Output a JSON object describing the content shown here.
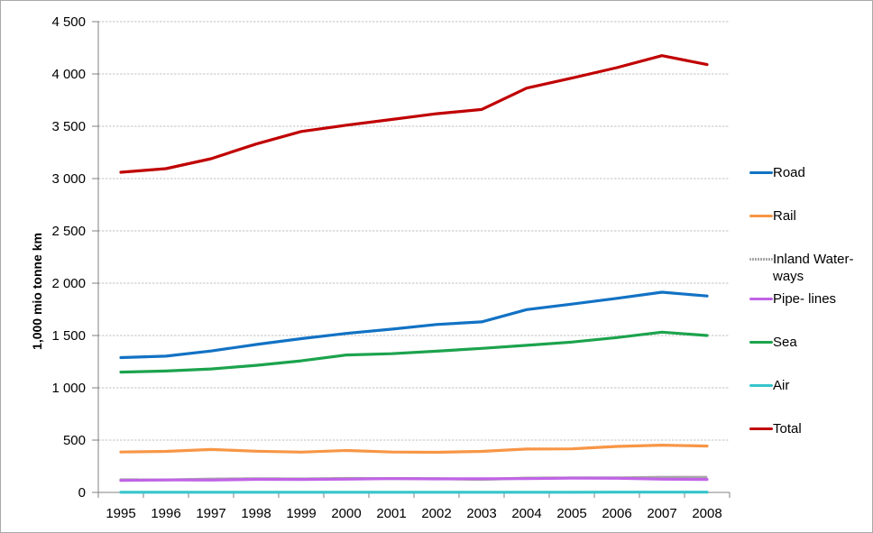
{
  "chart_data": {
    "type": "line",
    "title": "",
    "ylabel": "1,000 mio tonne km",
    "ylim": [
      0,
      4500
    ],
    "ytick_step": 500,
    "ytick_labels": [
      "0",
      "500",
      "1 000",
      "1 500",
      "2 000",
      "2 500",
      "3 000",
      "3 500",
      "4 000",
      "4 500"
    ],
    "grid": true,
    "legend_position": "right",
    "x": [
      "1995",
      "1996",
      "1997",
      "1998",
      "1999",
      "2000",
      "2001",
      "2002",
      "2003",
      "2004",
      "2005",
      "2006",
      "2007",
      "2008"
    ],
    "series": [
      {
        "name": "Road",
        "color": "#1272C4",
        "dashed": false,
        "values": [
          1289,
          1303,
          1352,
          1414,
          1470,
          1520,
          1560,
          1605,
          1630,
          1747,
          1800,
          1855,
          1914,
          1878
        ]
      },
      {
        "name": "Rail",
        "color": "#F79646",
        "dashed": false,
        "values": [
          386,
          392,
          410,
          394,
          385,
          401,
          386,
          384,
          392,
          415,
          416,
          440,
          452,
          443
        ]
      },
      {
        "name": "Inland Water-\nways",
        "color": "#A6A6A6",
        "dashed": true,
        "values": [
          121,
          120,
          128,
          131,
          129,
          134,
          133,
          132,
          124,
          137,
          139,
          139,
          145,
          145
        ]
      },
      {
        "name": "Pipe- lines",
        "color": "#C063E6",
        "dashed": false,
        "values": [
          115,
          119,
          118,
          125,
          124,
          127,
          132,
          129,
          131,
          132,
          136,
          135,
          127,
          124
        ]
      },
      {
        "name": "Sea",
        "color": "#1CA34D",
        "dashed": false,
        "values": [
          1150,
          1160,
          1180,
          1215,
          1258,
          1314,
          1326,
          1350,
          1377,
          1406,
          1437,
          1480,
          1532,
          1500
        ]
      },
      {
        "name": "Air",
        "color": "#35C5CC",
        "dashed": false,
        "values": [
          2,
          2,
          2,
          2,
          2,
          2,
          2,
          2,
          2,
          2,
          2,
          3,
          3,
          3
        ]
      },
      {
        "name": "Total",
        "color": "#C00000",
        "dashed": false,
        "values": [
          3060,
          3095,
          3190,
          3330,
          3450,
          3510,
          3565,
          3620,
          3660,
          3865,
          3960,
          4060,
          4175,
          4090
        ]
      }
    ]
  }
}
